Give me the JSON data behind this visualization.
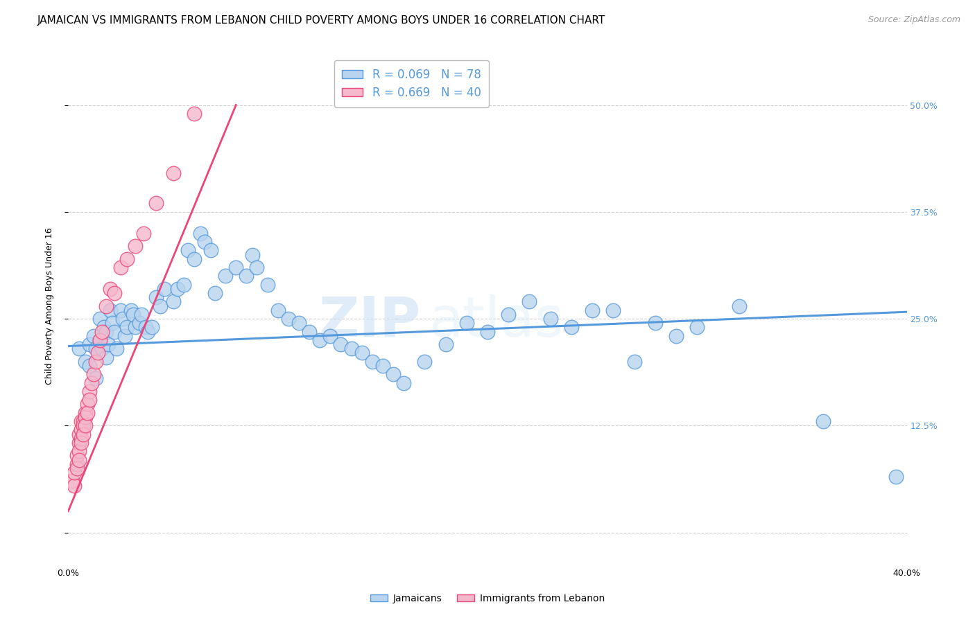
{
  "title": "JAMAICAN VS IMMIGRANTS FROM LEBANON CHILD POVERTY AMONG BOYS UNDER 16 CORRELATION CHART",
  "source": "Source: ZipAtlas.com",
  "ylabel": "Child Poverty Among Boys Under 16",
  "ytick_labels": [
    "",
    "12.5%",
    "25.0%",
    "37.5%",
    "50.0%"
  ],
  "ytick_values": [
    0,
    0.125,
    0.25,
    0.375,
    0.5
  ],
  "xlim": [
    0.0,
    0.4
  ],
  "ylim": [
    -0.035,
    0.565
  ],
  "legend_R1": "R = 0.069",
  "legend_N1": "N = 78",
  "legend_R2": "R = 0.669",
  "legend_N2": "N = 40",
  "blue_color": "#b8d4ee",
  "pink_color": "#f4b8cc",
  "line_blue": "#5599dd",
  "line_pink": "#ee4477",
  "watermark_zip": "ZIP",
  "watermark_atlas": "atlas",
  "blue_scatter_x": [
    0.005,
    0.008,
    0.01,
    0.01,
    0.012,
    0.013,
    0.013,
    0.015,
    0.015,
    0.016,
    0.017,
    0.018,
    0.018,
    0.019,
    0.02,
    0.021,
    0.022,
    0.023,
    0.025,
    0.026,
    0.027,
    0.028,
    0.03,
    0.031,
    0.032,
    0.034,
    0.035,
    0.037,
    0.038,
    0.04,
    0.042,
    0.044,
    0.046,
    0.05,
    0.052,
    0.055,
    0.057,
    0.06,
    0.063,
    0.065,
    0.068,
    0.07,
    0.075,
    0.08,
    0.085,
    0.088,
    0.09,
    0.095,
    0.1,
    0.105,
    0.11,
    0.115,
    0.12,
    0.125,
    0.13,
    0.135,
    0.14,
    0.145,
    0.15,
    0.155,
    0.16,
    0.17,
    0.18,
    0.19,
    0.2,
    0.21,
    0.22,
    0.23,
    0.24,
    0.25,
    0.26,
    0.27,
    0.28,
    0.29,
    0.3,
    0.32,
    0.36,
    0.395
  ],
  "blue_scatter_y": [
    0.215,
    0.2,
    0.22,
    0.195,
    0.23,
    0.215,
    0.18,
    0.25,
    0.225,
    0.215,
    0.24,
    0.235,
    0.205,
    0.22,
    0.26,
    0.245,
    0.235,
    0.215,
    0.26,
    0.25,
    0.23,
    0.24,
    0.26,
    0.255,
    0.24,
    0.245,
    0.255,
    0.24,
    0.235,
    0.24,
    0.275,
    0.265,
    0.285,
    0.27,
    0.285,
    0.29,
    0.33,
    0.32,
    0.35,
    0.34,
    0.33,
    0.28,
    0.3,
    0.31,
    0.3,
    0.325,
    0.31,
    0.29,
    0.26,
    0.25,
    0.245,
    0.235,
    0.225,
    0.23,
    0.22,
    0.215,
    0.21,
    0.2,
    0.195,
    0.185,
    0.175,
    0.2,
    0.22,
    0.245,
    0.235,
    0.255,
    0.27,
    0.25,
    0.24,
    0.26,
    0.26,
    0.2,
    0.245,
    0.23,
    0.24,
    0.265,
    0.13,
    0.065
  ],
  "pink_scatter_x": [
    0.002,
    0.003,
    0.003,
    0.004,
    0.004,
    0.004,
    0.005,
    0.005,
    0.005,
    0.005,
    0.006,
    0.006,
    0.006,
    0.006,
    0.007,
    0.007,
    0.007,
    0.008,
    0.008,
    0.008,
    0.009,
    0.009,
    0.01,
    0.01,
    0.011,
    0.012,
    0.013,
    0.014,
    0.015,
    0.016,
    0.018,
    0.02,
    0.022,
    0.025,
    0.028,
    0.032,
    0.036,
    0.042,
    0.05,
    0.06
  ],
  "pink_scatter_y": [
    0.06,
    0.055,
    0.07,
    0.08,
    0.09,
    0.075,
    0.105,
    0.095,
    0.115,
    0.085,
    0.12,
    0.11,
    0.13,
    0.105,
    0.13,
    0.125,
    0.115,
    0.14,
    0.135,
    0.125,
    0.15,
    0.14,
    0.165,
    0.155,
    0.175,
    0.185,
    0.2,
    0.21,
    0.225,
    0.235,
    0.265,
    0.285,
    0.28,
    0.31,
    0.32,
    0.335,
    0.35,
    0.385,
    0.42,
    0.49
  ],
  "blue_line_x": [
    0.0,
    0.4
  ],
  "blue_line_y": [
    0.218,
    0.258
  ],
  "pink_line_x": [
    0.0,
    0.08
  ],
  "pink_line_y": [
    0.025,
    0.5
  ],
  "title_fontsize": 11,
  "source_fontsize": 9,
  "axis_label_fontsize": 9,
  "tick_fontsize": 9,
  "legend_fontsize": 12
}
